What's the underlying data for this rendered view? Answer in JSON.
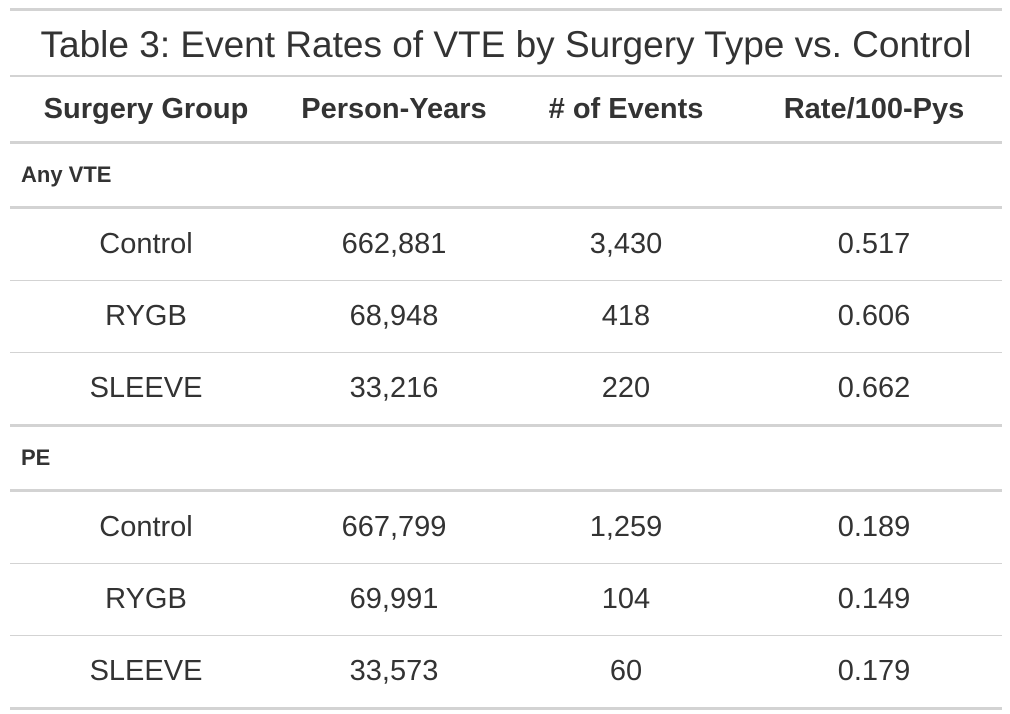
{
  "chart_data": {
    "type": "table",
    "title": "Table 3: Event Rates of VTE by Surgery Type vs. Control",
    "columns": [
      "Surgery Group",
      "Person-Years",
      "# of Events",
      "Rate/100-Pys"
    ],
    "groups": [
      {
        "label": "Any VTE",
        "rows": [
          [
            "Control",
            "662,881",
            "3,430",
            "0.517"
          ],
          [
            "RYGB",
            "68,948",
            "418",
            "0.606"
          ],
          [
            "SLEEVE",
            "33,216",
            "220",
            "0.662"
          ]
        ]
      },
      {
        "label": "PE",
        "rows": [
          [
            "Control",
            "667,799",
            "1,259",
            "0.189"
          ],
          [
            "RYGB",
            "69,991",
            "104",
            "0.149"
          ],
          [
            "SLEEVE",
            "33,573",
            "60",
            "0.179"
          ]
        ]
      }
    ]
  }
}
